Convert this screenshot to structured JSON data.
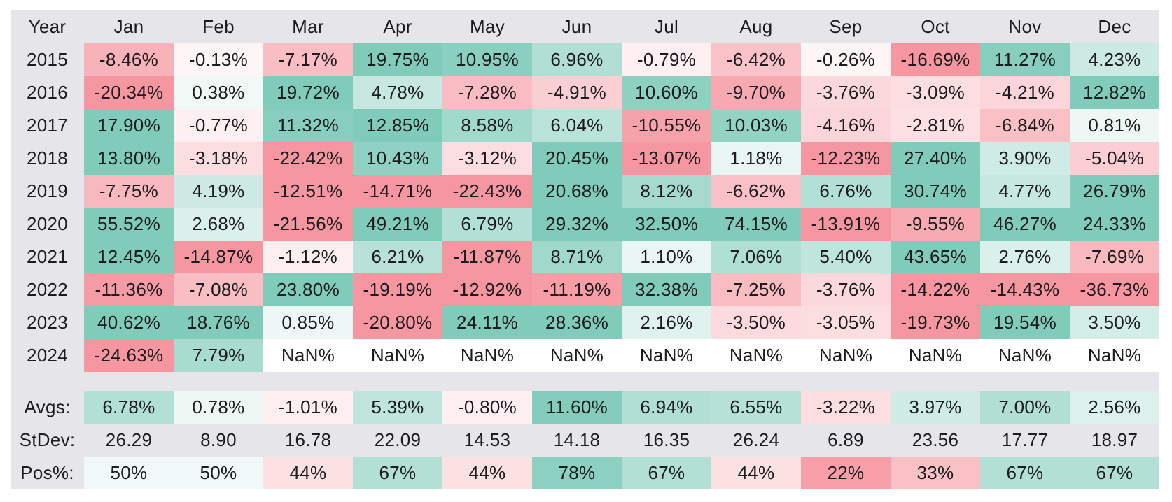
{
  "table": {
    "header": [
      "Year",
      "Jan",
      "Feb",
      "Mar",
      "Apr",
      "May",
      "Jun",
      "Jul",
      "Aug",
      "Sep",
      "Oct",
      "Nov",
      "Dec"
    ],
    "rows": [
      [
        "2015",
        "-8.46%",
        "-0.13%",
        "-7.17%",
        "19.75%",
        "10.95%",
        "6.96%",
        "-0.79%",
        "-6.42%",
        "-0.26%",
        "-16.69%",
        "11.27%",
        "4.23%"
      ],
      [
        "2016",
        "-20.34%",
        "0.38%",
        "19.72%",
        "4.78%",
        "-7.28%",
        "-4.91%",
        "10.60%",
        "-9.70%",
        "-3.76%",
        "-3.09%",
        "-4.21%",
        "12.82%"
      ],
      [
        "2017",
        "17.90%",
        "-0.77%",
        "11.32%",
        "12.85%",
        "8.58%",
        "6.04%",
        "-10.55%",
        "10.03%",
        "-4.16%",
        "-2.81%",
        "-6.84%",
        "0.81%"
      ],
      [
        "2018",
        "13.80%",
        "-3.18%",
        "-22.42%",
        "10.43%",
        "-3.12%",
        "20.45%",
        "-13.07%",
        "1.18%",
        "-12.23%",
        "27.40%",
        "3.90%",
        "-5.04%"
      ],
      [
        "2019",
        "-7.75%",
        "4.19%",
        "-12.51%",
        "-14.71%",
        "-22.43%",
        "20.68%",
        "8.12%",
        "-6.62%",
        "6.76%",
        "30.74%",
        "4.77%",
        "26.79%"
      ],
      [
        "2020",
        "55.52%",
        "2.68%",
        "-21.56%",
        "49.21%",
        "6.79%",
        "29.32%",
        "32.50%",
        "74.15%",
        "-13.91%",
        "-9.55%",
        "46.27%",
        "24.33%"
      ],
      [
        "2021",
        "12.45%",
        "-14.87%",
        "-1.12%",
        "6.21%",
        "-11.87%",
        "8.71%",
        "1.10%",
        "7.06%",
        "5.40%",
        "43.65%",
        "2.76%",
        "-7.69%"
      ],
      [
        "2022",
        "-11.36%",
        "-7.08%",
        "23.80%",
        "-19.19%",
        "-12.92%",
        "-11.19%",
        "32.38%",
        "-7.25%",
        "-3.76%",
        "-14.22%",
        "-14.43%",
        "-36.73%"
      ],
      [
        "2023",
        "40.62%",
        "18.76%",
        "0.85%",
        "-20.80%",
        "24.11%",
        "28.36%",
        "2.16%",
        "-3.50%",
        "-3.05%",
        "-19.73%",
        "19.54%",
        "3.50%"
      ],
      [
        "2024",
        "-24.63%",
        "7.79%",
        "NaN%",
        "NaN%",
        "NaN%",
        "NaN%",
        "NaN%",
        "NaN%",
        "NaN%",
        "NaN%",
        "NaN%",
        "NaN%"
      ]
    ],
    "summary": [
      [
        "Avgs:",
        "6.78%",
        "0.78%",
        "-1.01%",
        "5.39%",
        "-0.80%",
        "11.60%",
        "6.94%",
        "6.55%",
        "-3.22%",
        "3.97%",
        "7.00%",
        "2.56%"
      ],
      [
        "StDev:",
        "26.29",
        "8.90",
        "16.78",
        "22.09",
        "14.53",
        "14.18",
        "16.35",
        "26.24",
        "6.89",
        "23.56",
        "17.77",
        "18.97"
      ],
      [
        "Pos%:",
        "50%",
        "50%",
        "44%",
        "67%",
        "44%",
        "78%",
        "67%",
        "44%",
        "22%",
        "33%",
        "67%",
        "67%"
      ]
    ]
  }
}
